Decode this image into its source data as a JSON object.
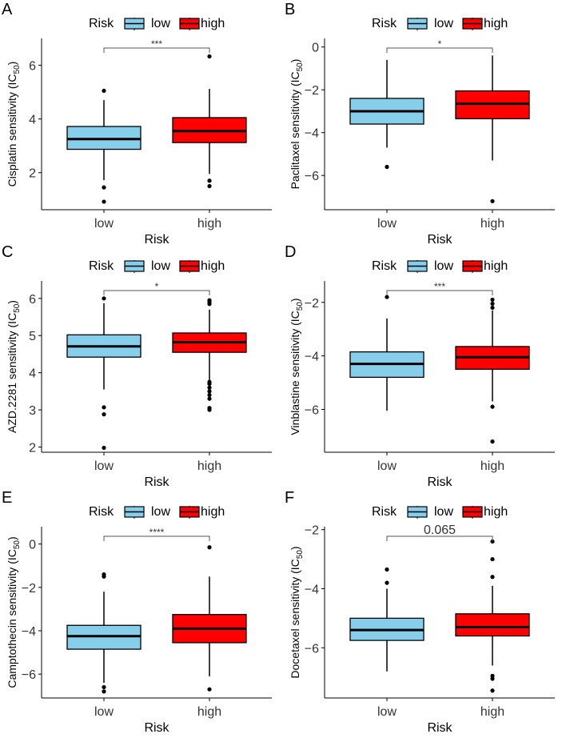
{
  "colors": {
    "low": "#87ceeb",
    "high": "#ff0000"
  },
  "chart_data": [
    {
      "type": "box",
      "panel": "A",
      "ylabel": "Cisplatin sensitivity (IC",
      "ylabel_sub": "50",
      "ylabel_end": ")",
      "xlabel": "Risk",
      "legend_title": "Risk",
      "categories": [
        "low",
        "high"
      ],
      "ylim": [
        0.62,
        7.0
      ],
      "yticks": [
        2,
        4,
        6
      ],
      "signif": "***",
      "boxes": [
        {
          "q1": 2.87,
          "median": 3.25,
          "q3": 3.72,
          "wlo": 1.72,
          "whi": 4.7,
          "outliers": [
            5.05,
            1.45,
            0.92
          ]
        },
        {
          "q1": 3.12,
          "median": 3.55,
          "q3": 4.05,
          "wlo": 1.95,
          "whi": 5.12,
          "outliers": [
            6.33,
            1.7,
            1.5
          ]
        }
      ]
    },
    {
      "type": "box",
      "panel": "B",
      "ylabel": "Paclitaxel sensitivity (IC",
      "ylabel_sub": "50",
      "ylabel_end": ")",
      "xlabel": "Risk",
      "legend_title": "Risk",
      "categories": [
        "low",
        "high"
      ],
      "ylim": [
        -7.6,
        0.4
      ],
      "yticks": [
        -6,
        -4,
        -2,
        0
      ],
      "signif": "*",
      "boxes": [
        {
          "q1": -3.6,
          "median": -3.0,
          "q3": -2.4,
          "wlo": -4.7,
          "whi": -0.6,
          "outliers": [
            -5.6
          ]
        },
        {
          "q1": -3.35,
          "median": -2.65,
          "q3": -2.05,
          "wlo": -5.3,
          "whi": -0.4,
          "outliers": [
            -7.2
          ]
        }
      ]
    },
    {
      "type": "box",
      "panel": "C",
      "ylabel": "AZD.2281 sensitivity (IC",
      "ylabel_sub": "50",
      "ylabel_end": ")",
      "xlabel": "Risk",
      "legend_title": "Risk",
      "categories": [
        "low",
        "high"
      ],
      "ylim": [
        1.86,
        6.47
      ],
      "yticks": [
        2,
        3,
        4,
        5,
        6
      ],
      "signif": "*",
      "boxes": [
        {
          "q1": 4.42,
          "median": 4.71,
          "q3": 5.02,
          "wlo": 3.55,
          "whi": 5.87,
          "outliers": [
            6.0,
            3.07,
            2.88,
            1.98
          ]
        },
        {
          "q1": 4.55,
          "median": 4.82,
          "q3": 5.07,
          "wlo": 3.8,
          "whi": 5.7,
          "outliers": [
            5.95,
            5.9,
            5.85,
            3.75,
            3.7,
            3.6,
            3.5,
            3.4,
            3.3,
            3.05,
            3.0
          ]
        }
      ]
    },
    {
      "type": "box",
      "panel": "D",
      "ylabel": "Vinblastine sensitivity (IC",
      "ylabel_sub": "50",
      "ylabel_end": ")",
      "xlabel": "Risk",
      "legend_title": "Risk",
      "categories": [
        "low",
        "high"
      ],
      "ylim": [
        -7.6,
        -1.2
      ],
      "yticks": [
        -6,
        -4,
        -2
      ],
      "signif": "***",
      "boxes": [
        {
          "q1": -4.8,
          "median": -4.3,
          "q3": -3.85,
          "wlo": -6.05,
          "whi": -2.6,
          "outliers": [
            -1.8
          ]
        },
        {
          "q1": -4.5,
          "median": -4.05,
          "q3": -3.65,
          "wlo": -5.7,
          "whi": -2.3,
          "outliers": [
            -1.9,
            -2.05,
            -2.2,
            -5.9,
            -7.2
          ]
        }
      ]
    },
    {
      "type": "box",
      "panel": "E",
      "ylabel": "Camptothecin sensitivity (IC",
      "ylabel_sub": "50",
      "ylabel_end": ")",
      "xlabel": "Risk",
      "legend_title": "Risk",
      "categories": [
        "low",
        "high"
      ],
      "ylim": [
        -7.1,
        0.8
      ],
      "yticks": [
        -6,
        -4,
        -2,
        0
      ],
      "signif": "****",
      "boxes": [
        {
          "q1": -4.85,
          "median": -4.25,
          "q3": -3.75,
          "wlo": -6.4,
          "whi": -2.2,
          "outliers": [
            -1.4,
            -1.5,
            -6.6,
            -6.8
          ]
        },
        {
          "q1": -4.55,
          "median": -3.9,
          "q3": -3.25,
          "wlo": -6.1,
          "whi": -1.5,
          "outliers": [
            -0.15,
            -6.7
          ]
        }
      ]
    },
    {
      "type": "box",
      "panel": "F",
      "ylabel": "Docetaxel sensitivity (IC",
      "ylabel_sub": "50",
      "ylabel_end": ")",
      "xlabel": "Risk",
      "legend_title": "Risk",
      "categories": [
        "low",
        "high"
      ],
      "ylim": [
        -7.7,
        -1.9
      ],
      "yticks": [
        -6,
        -4,
        -2
      ],
      "signif": "0.065",
      "boxes": [
        {
          "q1": -5.75,
          "median": -5.4,
          "q3": -5.0,
          "wlo": -6.8,
          "whi": -4.0,
          "outliers": [
            -3.35,
            -3.8
          ]
        },
        {
          "q1": -5.6,
          "median": -5.3,
          "q3": -4.85,
          "wlo": -6.6,
          "whi": -3.9,
          "outliers": [
            -2.4,
            -3.0,
            -3.6,
            -6.95,
            -7.05,
            -7.45
          ]
        }
      ]
    }
  ]
}
